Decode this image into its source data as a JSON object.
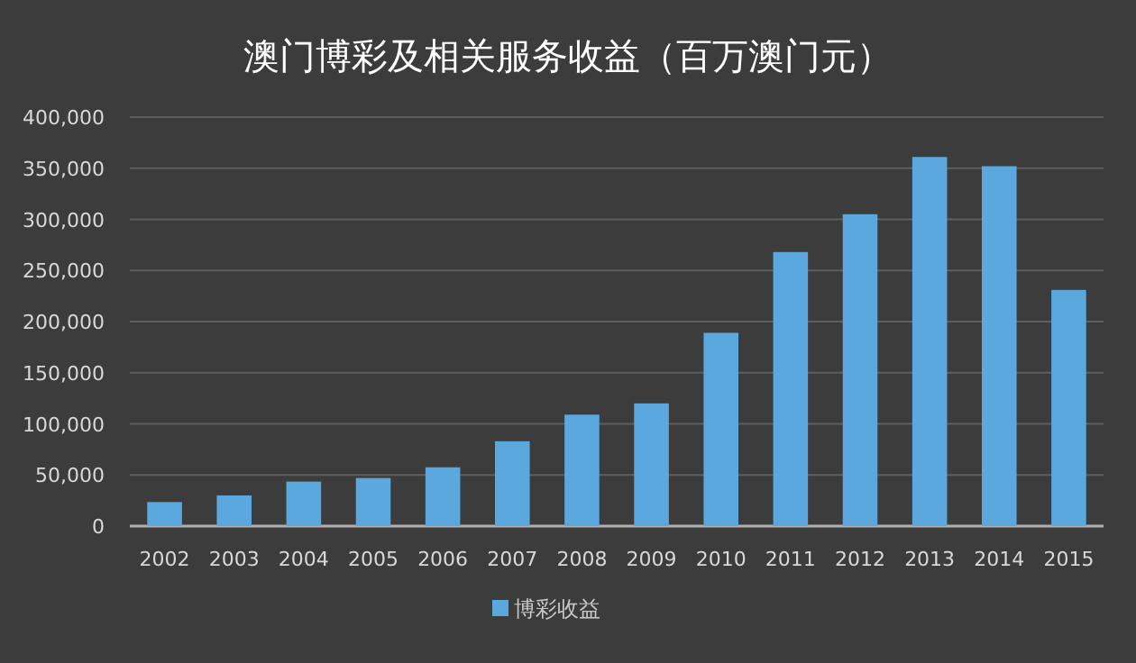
{
  "chart_data": {
    "type": "bar",
    "title": "澳门博彩及相关服务收益（百万澳门元）",
    "categories": [
      "2002",
      "2003",
      "2004",
      "2005",
      "2006",
      "2007",
      "2008",
      "2009",
      "2010",
      "2011",
      "2012",
      "2013",
      "2014",
      "2015"
    ],
    "series": [
      {
        "name": "博彩收益",
        "color": "#5ba8de",
        "values": [
          23500,
          30000,
          43500,
          47000,
          57500,
          83000,
          109000,
          120000,
          189000,
          268000,
          305000,
          361000,
          352000,
          231000
        ]
      }
    ],
    "ylim": [
      0,
      400000
    ],
    "yticks": [
      {
        "value": 0,
        "label": "0"
      },
      {
        "value": 50000,
        "label": "50,000"
      },
      {
        "value": 100000,
        "label": "100,000"
      },
      {
        "value": 150000,
        "label": "150,000"
      },
      {
        "value": 200000,
        "label": "200,000"
      },
      {
        "value": 250000,
        "label": "250,000"
      },
      {
        "value": 300000,
        "label": "300,000"
      },
      {
        "value": 350000,
        "label": "350,000"
      },
      {
        "value": 400000,
        "label": "400,000"
      }
    ],
    "grid": "y",
    "legend": "bottom"
  }
}
